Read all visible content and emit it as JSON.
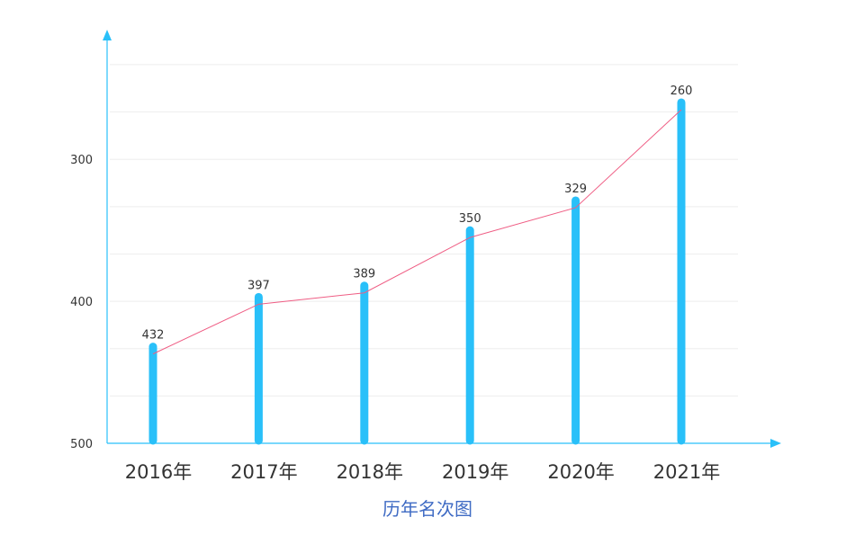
{
  "chart_data": {
    "type": "bar",
    "categories": [
      "2016年",
      "2017年",
      "2018年",
      "2019年",
      "2020年",
      "2021年"
    ],
    "values": [
      432,
      397,
      389,
      350,
      329,
      260
    ],
    "overlay_line": true,
    "xlabel": "历年名次图",
    "ylabel": "",
    "yticks": [
      300,
      400,
      500
    ],
    "ylim": [
      500,
      227
    ],
    "inverted_y": true,
    "grid": true,
    "colors": {
      "bar": "#29c0f9",
      "line": "#ef5d84",
      "axis": "#29c0f9",
      "grid": "#eeeeee"
    }
  }
}
